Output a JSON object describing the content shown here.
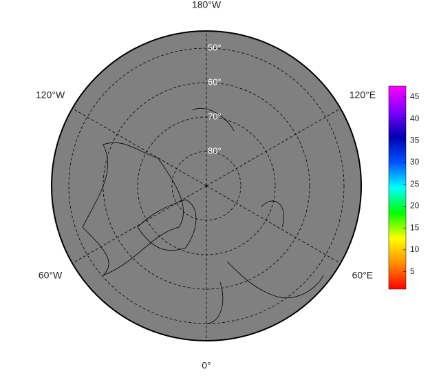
{
  "map": {
    "longitude_labels": [
      {
        "value": -180,
        "label": "180°W"
      },
      {
        "value": -120,
        "label": "120°W"
      },
      {
        "value": 120,
        "label": "120°E"
      },
      {
        "value": -60,
        "label": "60°W"
      },
      {
        "value": 60,
        "label": "60°E"
      },
      {
        "value": 0,
        "label": "0°"
      }
    ],
    "latitude_labels": [
      {
        "value": 50,
        "label": "50°"
      },
      {
        "value": 60,
        "label": "60°"
      },
      {
        "value": 70,
        "label": "70°"
      },
      {
        "value": 80,
        "label": "80°"
      }
    ]
  },
  "colorbar": {
    "lim": [
      1,
      47.5
    ],
    "ticks": [
      5,
      10,
      15,
      20,
      25,
      30,
      35,
      40,
      45
    ],
    "colors": [
      "#ff0000",
      "#ff8c00",
      "#ffff00",
      "#00ff00",
      "#00ffff",
      "#0050ff",
      "#0000b0",
      "#8000ff",
      "#ff00ff"
    ]
  }
}
